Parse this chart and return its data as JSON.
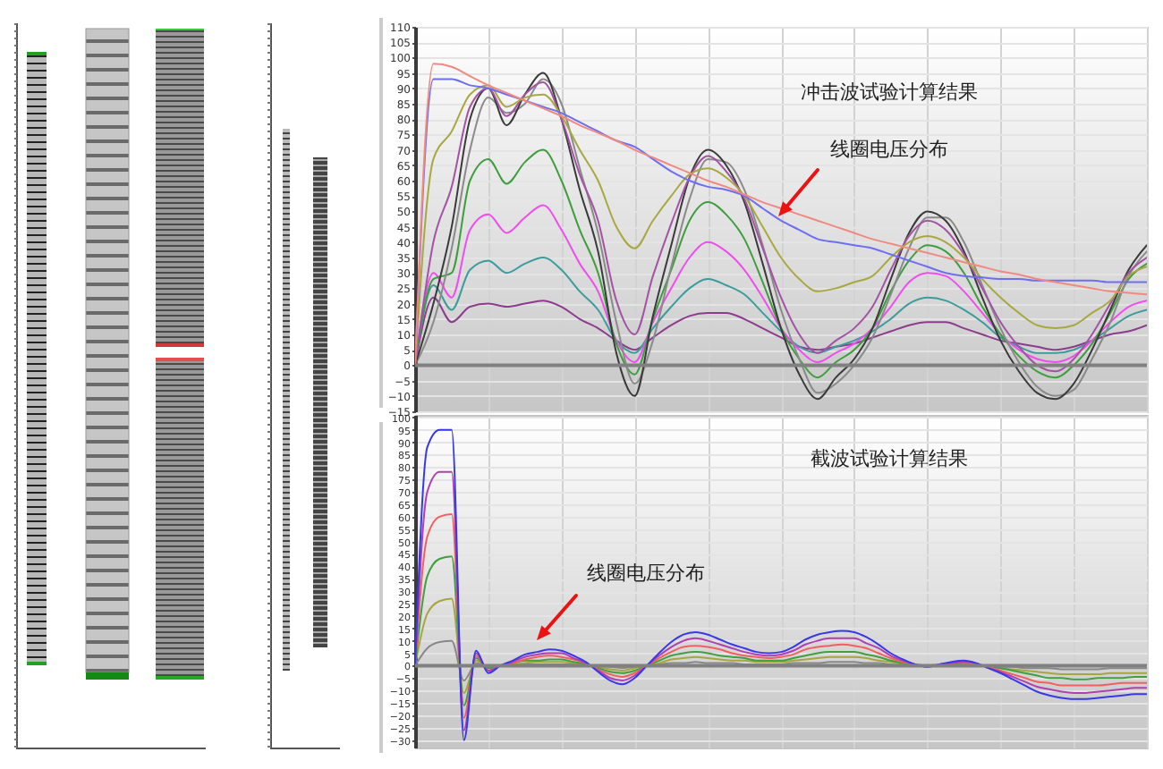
{
  "chart_data": [
    {
      "type": "line",
      "title": "冲击波试验计算结果",
      "annotations": [
        "线圈电压分布"
      ],
      "categories": [
        null,
        null,
        null,
        null,
        null,
        null,
        null,
        null,
        null,
        null,
        null,
        null,
        null,
        null,
        null,
        null,
        null,
        null,
        null,
        null,
        null,
        null,
        null,
        null,
        null,
        null,
        null,
        null,
        null,
        null,
        null,
        null,
        null,
        null,
        null,
        null,
        null,
        null,
        null,
        null,
        null
      ],
      "series": [
        {
          "color": "#f08a80",
          "values": [
            0,
            98,
            97,
            94,
            91,
            88.5,
            86,
            83.5,
            81,
            78,
            75.5,
            73,
            70,
            67.5,
            65,
            62.5,
            60,
            58,
            55.5,
            53,
            51,
            49,
            47,
            45,
            43,
            41,
            39.5,
            38,
            36.5,
            35,
            33.5,
            32,
            30.5,
            29.5,
            28,
            27,
            26,
            25,
            24,
            23.5,
            23
          ]
        },
        {
          "color": "#6e6ef0",
          "values": [
            0,
            93,
            93,
            91,
            90,
            88,
            86,
            84,
            82,
            79,
            76,
            73,
            71,
            67,
            63,
            60,
            58,
            57,
            55,
            51,
            47,
            44,
            41,
            40,
            39,
            38,
            36,
            34,
            32,
            30,
            29,
            28.5,
            28,
            28,
            27.5,
            27.5,
            27.5,
            27.5,
            27,
            27,
            27
          ]
        },
        {
          "color": "#a8a840",
          "values": [
            0,
            67,
            76,
            88,
            91,
            84,
            87,
            88,
            81,
            70,
            60,
            45,
            38,
            47,
            55,
            62,
            64,
            61,
            55,
            45,
            35,
            28,
            24,
            25,
            27,
            29,
            35,
            40,
            42,
            40,
            35,
            28,
            22,
            17,
            13,
            12,
            13,
            17,
            21,
            29,
            32
          ]
        },
        {
          "color": "#a452a4",
          "values": [
            0,
            40,
            58,
            84,
            90,
            81,
            88,
            92,
            80,
            62,
            47,
            21,
            10,
            29,
            46,
            61,
            68,
            63,
            54,
            38,
            22,
            10,
            4,
            8,
            12,
            19,
            31,
            42,
            47,
            44,
            36,
            25,
            14,
            6,
            0,
            -2,
            2,
            10,
            20,
            30,
            35
          ]
        },
        {
          "color": "#3a3a3a",
          "values": [
            0,
            20,
            45,
            80,
            90,
            78,
            88,
            95,
            80,
            57,
            37,
            4,
            -10,
            16,
            39,
            61,
            70,
            65,
            53,
            33,
            12,
            -3,
            -11,
            -4,
            2,
            12,
            28,
            43,
            50,
            47,
            37,
            22,
            8,
            -2,
            -9,
            -11,
            -6,
            5,
            18,
            31,
            39
          ]
        },
        {
          "color": "#8a8a8a",
          "values": [
            0,
            14,
            38,
            70,
            87,
            82,
            85,
            93,
            85,
            64,
            43,
            14,
            -6,
            8,
            32,
            54,
            67,
            66,
            57,
            39,
            18,
            2,
            -9,
            -6,
            0,
            9,
            23,
            38,
            48,
            48,
            40,
            26,
            12,
            1,
            -7,
            -10,
            -8,
            2,
            14,
            29,
            37
          ]
        },
        {
          "color": "#3e9e3e",
          "values": [
            0,
            28,
            30,
            60,
            67,
            59,
            66,
            70,
            60,
            44,
            30,
            7,
            -3,
            15,
            31,
            47,
            53,
            49,
            41,
            27,
            12,
            2,
            -4,
            1,
            5,
            12,
            24,
            34,
            39,
            37,
            30,
            19,
            10,
            3,
            -2,
            -4,
            0,
            7,
            17,
            28,
            33
          ]
        },
        {
          "color": "#f04cf0",
          "values": [
            0,
            30,
            22,
            44,
            49,
            43,
            48,
            52,
            44,
            33,
            24,
            8,
            1,
            14,
            25,
            35,
            40,
            37,
            31,
            22,
            12,
            5,
            1,
            4,
            7,
            12,
            19,
            27,
            30,
            29,
            24,
            17,
            10,
            5,
            2,
            1,
            3,
            8,
            14,
            19,
            21
          ]
        },
        {
          "color": "#3c9c9c",
          "values": [
            0,
            26,
            18,
            31,
            34,
            30,
            33,
            35,
            31,
            24,
            18,
            8,
            4,
            12,
            19,
            25,
            28,
            26,
            23,
            17,
            11,
            6,
            4,
            6,
            8,
            11,
            15,
            20,
            22,
            21,
            18,
            14,
            9,
            6,
            4,
            4,
            5,
            8,
            12,
            16,
            18
          ]
        },
        {
          "color": "#8c3c8c",
          "values": [
            0,
            22,
            14,
            19,
            20,
            19,
            20,
            21,
            19,
            15,
            12,
            8,
            5,
            9,
            13,
            16,
            17,
            17,
            15,
            12,
            9,
            6,
            5,
            6,
            7,
            9,
            11,
            13,
            14,
            14,
            12,
            10,
            8,
            7,
            6,
            5,
            6,
            8,
            10,
            11,
            13
          ]
        }
      ],
      "ylim": [
        -15,
        110
      ],
      "yticks": [
        -15,
        -10,
        -5,
        0,
        5,
        10,
        15,
        20,
        25,
        30,
        35,
        40,
        45,
        50,
        55,
        60,
        65,
        70,
        75,
        80,
        85,
        90,
        95,
        100,
        105,
        110
      ],
      "grid": true,
      "tick_labels": "y",
      "ref_lines": [
        {
          "axis": "y",
          "value": 0,
          "color": "#808080"
        }
      ]
    },
    {
      "type": "line",
      "title": "截波试验计算结果",
      "annotations": [
        "线圈电压分布"
      ],
      "categories": [
        null,
        null,
        null,
        null,
        null,
        null,
        null,
        null,
        null,
        null,
        null,
        null,
        null,
        null,
        null,
        null,
        null,
        null,
        null,
        null,
        null,
        null,
        null,
        null,
        null,
        null,
        null,
        null,
        null,
        null,
        null,
        null,
        null,
        null,
        null,
        null,
        null,
        null,
        null,
        null,
        null,
        null,
        null,
        null,
        null,
        null,
        null,
        null,
        null,
        null,
        null,
        null,
        null,
        null,
        null,
        null,
        null,
        null,
        null,
        null,
        null
      ],
      "series": [
        {
          "color": "#3838e8",
          "values": [
            0,
            88,
            95,
            95,
            -30,
            6,
            -3,
            0,
            2,
            4.5,
            5.5,
            6.5,
            6,
            4,
            1.5,
            -2.5,
            -6,
            -7.5,
            -5,
            0,
            5,
            9.5,
            12.5,
            13.5,
            12.5,
            10.5,
            8.5,
            7,
            5.5,
            5,
            5.5,
            7.5,
            10.5,
            12.5,
            13.5,
            14,
            13.5,
            11.5,
            8.5,
            5,
            2.5,
            0.5,
            -0.5,
            0.5,
            1.5,
            2,
            1,
            -1,
            -3,
            -5.5,
            -8,
            -10.5,
            -12,
            -13,
            -13.5,
            -13.5,
            -13,
            -12.5,
            -12,
            -11.5,
            -11.5
          ]
        },
        {
          "color": "#b040b0",
          "values": [
            0,
            70,
            78,
            78,
            -26,
            5,
            -2,
            0,
            1.5,
            3.5,
            4.5,
            5,
            5,
            3,
            1,
            -2,
            -5,
            -6,
            -4,
            0,
            4,
            7.5,
            10,
            11,
            10,
            8.5,
            7,
            5.5,
            4.5,
            4,
            4.5,
            6,
            8.5,
            10,
            11,
            11,
            11,
            9,
            7,
            4,
            2,
            0.5,
            -0.5,
            0.5,
            1,
            1.5,
            1,
            -1,
            -2.5,
            -4.5,
            -6.5,
            -8.5,
            -9.5,
            -10.5,
            -11,
            -11,
            -10.5,
            -10,
            -9.5,
            -9,
            -9
          ]
        },
        {
          "color": "#f06060",
          "values": [
            0,
            52,
            60,
            61,
            -21,
            4,
            -2,
            0,
            1,
            2.5,
            3.5,
            4,
            3.5,
            2.5,
            1,
            -1.5,
            -3.5,
            -4.5,
            -3,
            0,
            3,
            5.5,
            7.5,
            8,
            7.5,
            6.5,
            5,
            4,
            3.5,
            3,
            3.5,
            4.5,
            6.5,
            7.5,
            8,
            8.5,
            8,
            7,
            5,
            3,
            1.5,
            0.5,
            0,
            0.5,
            1,
            1,
            0.5,
            -0.5,
            -2,
            -3.5,
            -5,
            -6.5,
            -7,
            -8,
            -8,
            -8,
            -8,
            -7.5,
            -7,
            -7,
            -7
          ]
        },
        {
          "color": "#3ea03e",
          "values": [
            0,
            36,
            43,
            44,
            -16,
            3,
            -1,
            0,
            1,
            2,
            2,
            2.5,
            2.5,
            1.5,
            0.5,
            -1,
            -2.5,
            -3,
            -2,
            0,
            2,
            4,
            5,
            5.5,
            5,
            4,
            3.5,
            3,
            2,
            2,
            2,
            3,
            4,
            5,
            5.5,
            5.5,
            5.5,
            4.5,
            3.5,
            2,
            1,
            0,
            0,
            0,
            0.5,
            1,
            0.5,
            -0.5,
            -1,
            -2,
            -3,
            -4,
            -5,
            -5,
            -5.5,
            -5.5,
            -5,
            -5,
            -5,
            -4.5,
            -4.5
          ]
        },
        {
          "color": "#a6a640",
          "values": [
            0,
            21,
            26,
            27,
            -11,
            2,
            -1,
            0,
            0.5,
            1,
            1.5,
            1.5,
            1.5,
            1,
            0.5,
            -0.5,
            -1.5,
            -2,
            -1,
            0,
            1,
            2.5,
            3,
            3.5,
            3,
            2.5,
            2,
            2,
            1.5,
            1.5,
            1.5,
            2,
            2.5,
            3,
            3.5,
            3.5,
            3.5,
            3,
            2,
            1.5,
            0.5,
            0,
            0,
            0,
            0.5,
            0.5,
            0,
            0,
            -1,
            -1.5,
            -2,
            -2.5,
            -3,
            -3.5,
            -3.5,
            -3.5,
            -3.5,
            -3,
            -3,
            -3,
            -3
          ]
        },
        {
          "color": "#888888",
          "values": [
            0,
            7,
            9.5,
            10,
            -6,
            1,
            -0.5,
            0,
            0,
            0.5,
            0.5,
            0.5,
            0.5,
            0.5,
            0,
            0,
            -0.5,
            -1,
            -0.5,
            0,
            0.5,
            1,
            1,
            1.5,
            1,
            1,
            1,
            0.5,
            0.5,
            0.5,
            0.5,
            1,
            1,
            1,
            1.5,
            1.5,
            1.5,
            1,
            1,
            0.5,
            0,
            0,
            0,
            0,
            0,
            0,
            0,
            0,
            -0.5,
            -0.5,
            -1,
            -1,
            -1,
            -1.5,
            -1.5,
            -1.5,
            -1.5,
            -1,
            -1,
            -1,
            -1
          ]
        }
      ],
      "ylim": [
        -33,
        101
      ],
      "yticks": [
        -30,
        -25,
        -20,
        -15,
        -10,
        -5,
        0,
        5,
        10,
        15,
        20,
        25,
        30,
        35,
        40,
        45,
        50,
        55,
        60,
        65,
        70,
        75,
        80,
        85,
        90,
        95,
        100
      ],
      "grid": true,
      "tick_labels": "y",
      "ref_lines": [
        {
          "axis": "y",
          "value": 0,
          "color": "#808080"
        }
      ]
    }
  ]
}
